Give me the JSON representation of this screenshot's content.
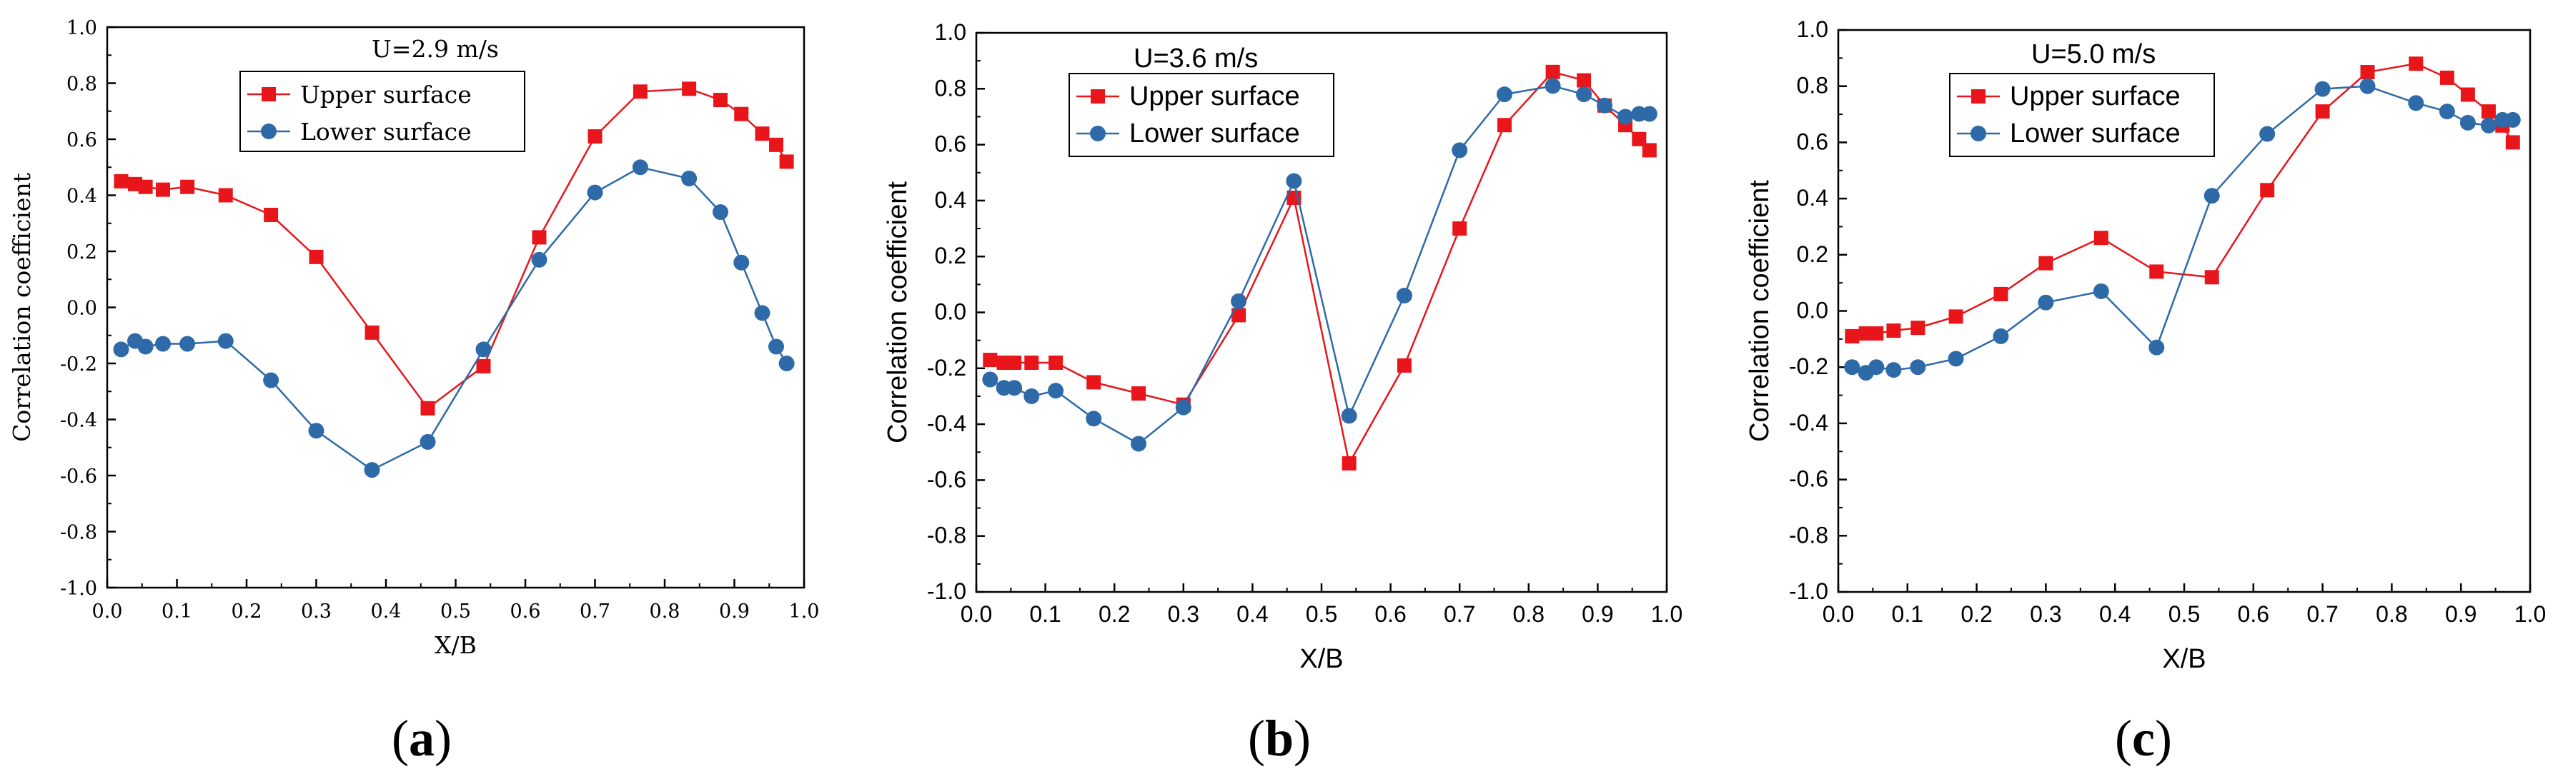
{
  "figure_caption_labels": [
    "a",
    "b",
    "c"
  ],
  "colors": {
    "upper": "#e8161b",
    "lower": "#2e6aa8"
  },
  "chart_data": [
    {
      "type": "line",
      "panel": "(a)",
      "title": "U=2.9 m/s",
      "xlabel": "X/B",
      "ylabel": "Correlation coefficient",
      "xlim": [
        0,
        1
      ],
      "ylim": [
        -1,
        1
      ],
      "xticks": [
        "0.0",
        "0.1",
        "0.2",
        "0.3",
        "0.4",
        "0.5",
        "0.6",
        "0.7",
        "0.8",
        "0.9",
        "1.0"
      ],
      "yticks": [
        "-1.0",
        "-0.8",
        "-0.6",
        "-0.4",
        "-0.2",
        "0.0",
        "0.2",
        "0.4",
        "0.6",
        "0.8",
        "1.0"
      ],
      "legend": "top-center",
      "series": [
        {
          "name": "Upper surface",
          "marker": "square",
          "color": "#e8161b",
          "x": [
            0.02,
            0.04,
            0.055,
            0.08,
            0.115,
            0.17,
            0.235,
            0.3,
            0.38,
            0.46,
            0.54,
            0.62,
            0.7,
            0.765,
            0.835,
            0.88,
            0.91,
            0.94,
            0.96,
            0.975
          ],
          "y": [
            0.45,
            0.44,
            0.43,
            0.42,
            0.43,
            0.4,
            0.33,
            0.18,
            -0.09,
            -0.36,
            -0.21,
            0.25,
            0.61,
            0.77,
            0.78,
            0.74,
            0.69,
            0.62,
            0.58,
            0.52
          ]
        },
        {
          "name": "Lower surface",
          "marker": "circle",
          "color": "#2e6aa8",
          "x": [
            0.02,
            0.04,
            0.055,
            0.08,
            0.115,
            0.17,
            0.235,
            0.3,
            0.38,
            0.46,
            0.54,
            0.62,
            0.7,
            0.765,
            0.835,
            0.88,
            0.91,
            0.94,
            0.96,
            0.975
          ],
          "y": [
            -0.15,
            -0.12,
            -0.14,
            -0.13,
            -0.13,
            -0.12,
            -0.26,
            -0.44,
            -0.58,
            -0.48,
            -0.15,
            0.17,
            0.41,
            0.5,
            0.46,
            0.34,
            0.16,
            -0.02,
            -0.14,
            -0.2
          ]
        }
      ]
    },
    {
      "type": "line",
      "panel": "(b)",
      "title": "U=3.6 m/s",
      "xlabel": "X/B",
      "ylabel": "Correlation coefficient",
      "xlim": [
        0,
        1
      ],
      "ylim": [
        -1,
        1
      ],
      "xticks": [
        "0.0",
        "0.1",
        "0.2",
        "0.3",
        "0.4",
        "0.5",
        "0.6",
        "0.7",
        "0.8",
        "0.9",
        "1.0"
      ],
      "yticks": [
        "-1.0",
        "-0.8",
        "-0.6",
        "-0.4",
        "-0.2",
        "0.0",
        "0.2",
        "0.4",
        "0.6",
        "0.8",
        "1.0"
      ],
      "legend": "top-left",
      "series": [
        {
          "name": "Upper surface",
          "marker": "square",
          "color": "#e8161b",
          "x": [
            0.02,
            0.04,
            0.055,
            0.08,
            0.115,
            0.17,
            0.235,
            0.3,
            0.38,
            0.46,
            0.54,
            0.62,
            0.7,
            0.765,
            0.835,
            0.88,
            0.91,
            0.94,
            0.96,
            0.975
          ],
          "y": [
            -0.17,
            -0.18,
            -0.18,
            -0.18,
            -0.18,
            -0.25,
            -0.29,
            -0.33,
            -0.01,
            0.41,
            -0.54,
            -0.19,
            0.3,
            0.67,
            0.86,
            0.83,
            0.74,
            0.67,
            0.62,
            0.58
          ]
        },
        {
          "name": "Lower surface",
          "marker": "circle",
          "color": "#2e6aa8",
          "x": [
            0.02,
            0.04,
            0.055,
            0.08,
            0.115,
            0.17,
            0.235,
            0.3,
            0.38,
            0.46,
            0.54,
            0.62,
            0.7,
            0.765,
            0.835,
            0.88,
            0.91,
            0.94,
            0.96,
            0.975
          ],
          "y": [
            -0.24,
            -0.27,
            -0.27,
            -0.3,
            -0.28,
            -0.38,
            -0.47,
            -0.34,
            0.04,
            0.47,
            -0.37,
            0.06,
            0.58,
            0.78,
            0.81,
            0.78,
            0.74,
            0.7,
            0.71,
            0.71
          ]
        }
      ]
    },
    {
      "type": "line",
      "panel": "(c)",
      "title": "U=5.0 m/s",
      "xlabel": "X/B",
      "ylabel": "Correlation coefficient",
      "xlim": [
        0,
        1
      ],
      "ylim": [
        -1,
        1
      ],
      "xticks": [
        "0.0",
        "0.1",
        "0.2",
        "0.3",
        "0.4",
        "0.5",
        "0.6",
        "0.7",
        "0.8",
        "0.9",
        "1.0"
      ],
      "yticks": [
        "-1.0",
        "-0.8",
        "-0.6",
        "-0.4",
        "-0.2",
        "0.0",
        "0.2",
        "0.4",
        "0.6",
        "0.8",
        "1.0"
      ],
      "legend": "top-left",
      "series": [
        {
          "name": "Upper surface",
          "marker": "square",
          "color": "#e8161b",
          "x": [
            0.02,
            0.04,
            0.055,
            0.08,
            0.115,
            0.17,
            0.235,
            0.3,
            0.38,
            0.46,
            0.54,
            0.62,
            0.7,
            0.765,
            0.835,
            0.88,
            0.91,
            0.94,
            0.96,
            0.975
          ],
          "y": [
            -0.09,
            -0.08,
            -0.08,
            -0.07,
            -0.06,
            -0.02,
            0.06,
            0.17,
            0.26,
            0.14,
            0.12,
            0.43,
            0.71,
            0.85,
            0.88,
            0.83,
            0.77,
            0.71,
            0.66,
            0.6
          ]
        },
        {
          "name": "Lower surface",
          "marker": "circle",
          "color": "#2e6aa8",
          "x": [
            0.02,
            0.04,
            0.055,
            0.08,
            0.115,
            0.17,
            0.235,
            0.3,
            0.38,
            0.46,
            0.54,
            0.62,
            0.7,
            0.765,
            0.835,
            0.88,
            0.91,
            0.94,
            0.96,
            0.975
          ],
          "y": [
            -0.2,
            -0.22,
            -0.2,
            -0.21,
            -0.2,
            -0.17,
            -0.09,
            0.03,
            0.07,
            -0.13,
            0.41,
            0.63,
            0.79,
            0.8,
            0.74,
            0.71,
            0.67,
            0.66,
            0.68,
            0.68
          ]
        }
      ]
    }
  ]
}
